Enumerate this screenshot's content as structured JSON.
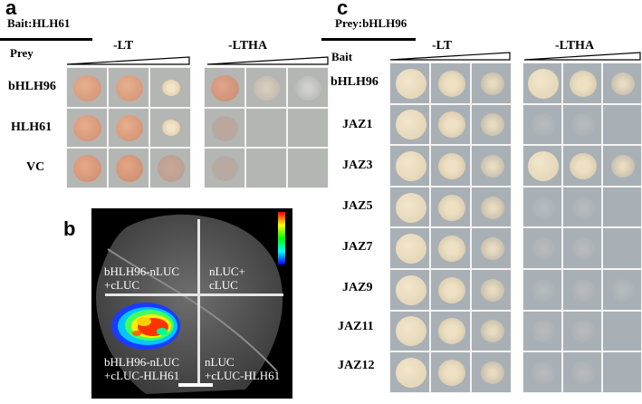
{
  "panel_a": {
    "letter": "a",
    "bait_label": "Bait:HLH61",
    "prey_header": "Prey",
    "media": [
      "-LT",
      "-LTHA"
    ],
    "rows": [
      "bHLH96",
      "HLH61",
      "VC"
    ]
  },
  "panel_b": {
    "letter": "b",
    "quadrants": {
      "top_left": "bHLH96-nLUC\n+cLUC",
      "top_right": "nLUC+\ncLUC",
      "bottom_left": "bHLH96-nLUC\n+cLUC-HLH61",
      "bottom_right": "nLUC\n+cLUC-HLH61"
    }
  },
  "panel_c": {
    "letter": "c",
    "prey_label": "Prey:bHLH96",
    "bait_header": "Bait",
    "media": [
      "-LT",
      "-LTHA"
    ],
    "rows": [
      "bHLH96",
      "JAZ1",
      "JAZ3",
      "JAZ5",
      "JAZ7",
      "JAZ9",
      "JAZ11",
      "JAZ12"
    ]
  },
  "colors": {
    "plate_gray": "#b4b6b3",
    "colony_strong": "#d99a77",
    "colony_cream": "#e8dcc0",
    "leaf_bg": "#000000"
  }
}
